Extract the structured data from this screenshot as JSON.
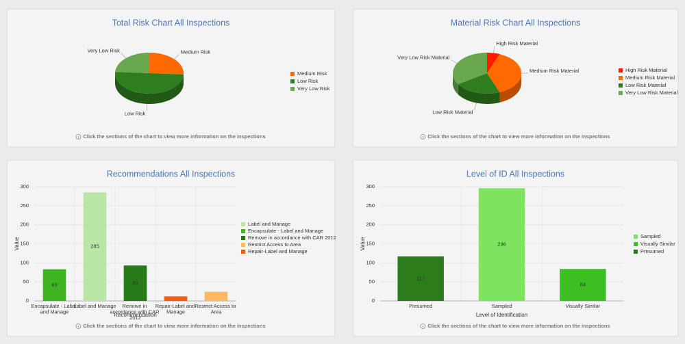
{
  "chart_data": [
    {
      "type": "pie3d",
      "title": "Total Risk Chart All Inspections",
      "categories": [
        "Medium Risk",
        "Low Risk",
        "Very Low Risk"
      ],
      "values": [
        26,
        50,
        24
      ],
      "colors": [
        "#ff6a00",
        "#2e7d1e",
        "#6aa84f"
      ],
      "note": "Click the sections of the chart to view more information on the inspections"
    },
    {
      "type": "pie3d",
      "title": "Material Risk Chart All Inspections",
      "categories": [
        "High Risk Material",
        "Medium Risk Material",
        "Low Risk Material",
        "Very Low Risk Material"
      ],
      "values": [
        6,
        38,
        22,
        34
      ],
      "colors": [
        "#ff1a00",
        "#ff6a00",
        "#2e7d1e",
        "#6aa84f"
      ],
      "note": "Click the sections of the chart to view more information on the inspections"
    },
    {
      "type": "bar",
      "title": "Recommendations All Inspections",
      "categories": [
        "Encapsulate - Label and Manage",
        "Label and Manage",
        "Remove in accordance with CAR 2012",
        "Repair-Label and Manage",
        "Restrict Access to Area"
      ],
      "values": [
        83,
        285,
        93,
        12,
        24
      ],
      "colors": [
        "#3cb521",
        "#b9e5a5",
        "#267a17",
        "#f25d12",
        "#fbb962"
      ],
      "legend": [
        {
          "name": "Label and Manage",
          "color": "#b9e5a5"
        },
        {
          "name": "Encapsulate - Label and Manage",
          "color": "#3cb521"
        },
        {
          "name": "Remove in accordance with CAR 2012",
          "color": "#267a17"
        },
        {
          "name": "Restrict Access to Area",
          "color": "#fbb962"
        },
        {
          "name": "Repair-Label and Manage",
          "color": "#f25d12"
        }
      ],
      "ylim": [
        0,
        300
      ],
      "yticks": [
        0,
        50,
        100,
        150,
        200,
        250,
        300
      ],
      "ylabel": "Value",
      "xlabel": "Recommendation",
      "note": "Click the sections of the chart to view more information on the inspections"
    },
    {
      "type": "bar",
      "title": "Level of ID All Inspections",
      "categories": [
        "Presumed",
        "Sampled",
        "Visually Similar"
      ],
      "values": [
        117,
        296,
        84
      ],
      "colors": [
        "#2a7d1a",
        "#7ee35f",
        "#3cbf22"
      ],
      "legend": [
        {
          "name": "Sampled",
          "color": "#7ee35f"
        },
        {
          "name": "Visually Similar",
          "color": "#3cbf22"
        },
        {
          "name": "Presumed",
          "color": "#2a7d1a"
        }
      ],
      "ylim": [
        0,
        300
      ],
      "yticks": [
        0,
        50,
        100,
        150,
        200,
        250,
        300
      ],
      "ylabel": "Value",
      "xlabel": "Level of Identification",
      "note": "Click the sections of the chart to view more information on the inspections"
    }
  ]
}
